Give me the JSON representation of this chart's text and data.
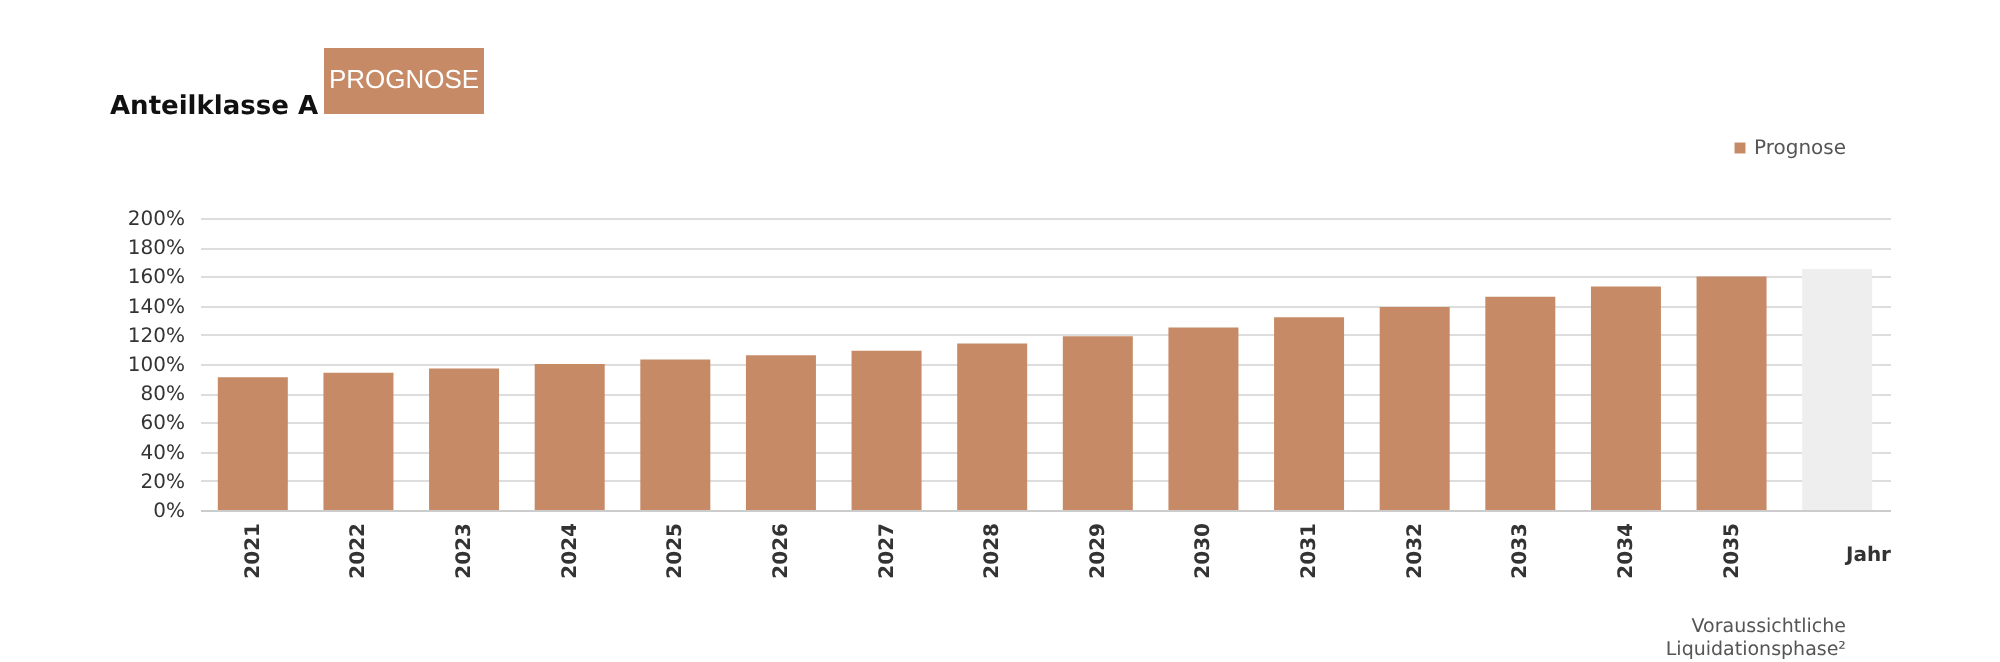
{
  "chart_data": {
    "type": "bar",
    "title": "Anteilklasse A",
    "subtitle": "PROGNOSE",
    "xlabel": "Jahr",
    "categories": [
      "2021",
      "2022",
      "2023",
      "2024",
      "2025",
      "2026",
      "2027",
      "2028",
      "2029",
      "2030",
      "2031",
      "2032",
      "2033",
      "2034",
      "2035",
      null
    ],
    "series": [
      {
        "name": "Prognose",
        "color": "#c68a66",
        "values": [
          91,
          94,
          97,
          100,
          103,
          106,
          109,
          114,
          119,
          125,
          132,
          139,
          146,
          153,
          160,
          null
        ]
      },
      {
        "color": "#eeeeee",
        "values": [
          null,
          null,
          null,
          null,
          null,
          null,
          null,
          null,
          null,
          null,
          null,
          null,
          null,
          null,
          null,
          165
        ]
      }
    ],
    "ylim": [
      0,
      200
    ],
    "yticks": [
      {
        "value": 0,
        "label": "0%"
      },
      {
        "value": 20,
        "label": "20%"
      },
      {
        "value": 40,
        "label": "40%"
      },
      {
        "value": 60,
        "label": "60%"
      },
      {
        "value": 80,
        "label": "80%"
      },
      {
        "value": 100,
        "label": "100%"
      },
      {
        "value": 120,
        "label": "120%"
      },
      {
        "value": 140,
        "label": "140%"
      },
      {
        "value": 160,
        "label": "160%"
      },
      {
        "value": 180,
        "label": "180%"
      },
      {
        "value": 200,
        "label": "200%"
      }
    ],
    "annotations": [
      "Voraussichtliche Liquidationsphase²"
    ],
    "grid": "y",
    "legend": "top right"
  }
}
